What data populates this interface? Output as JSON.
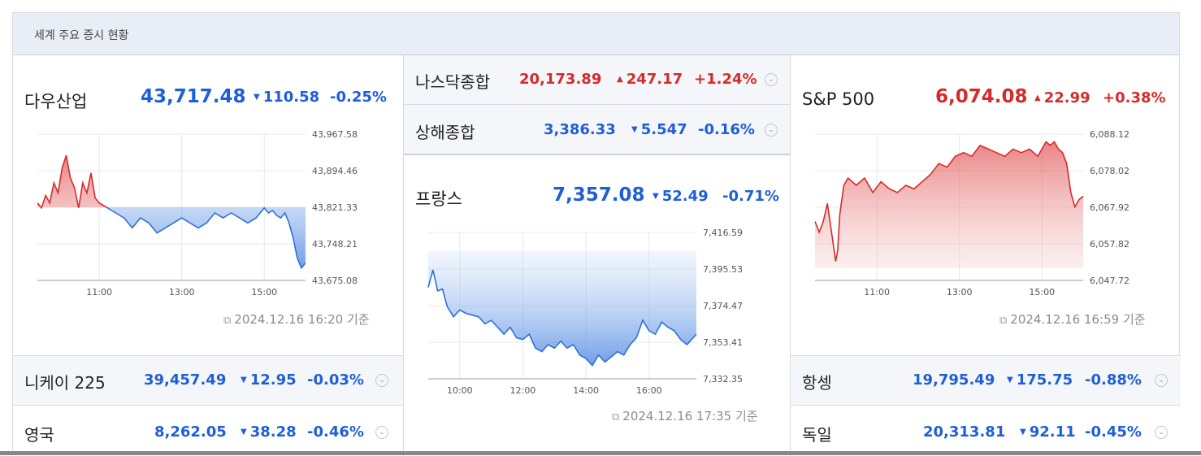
{
  "header": {
    "title": "세계 주요 증시 현황"
  },
  "colors": {
    "up": "#d42b2b",
    "down": "#1f5fd6",
    "header_bg": "#e9edf5"
  },
  "dow": {
    "name": "다우산업",
    "price": "43,717.48",
    "change": "110.58",
    "percent": "-0.25%",
    "direction": "down",
    "timestamp": "2024.12.16 16:20 기준",
    "chart_data": {
      "type": "line",
      "y_ticks": [
        "43,967.58",
        "43,894.46",
        "43,821.33",
        "43,748.21",
        "43,675.08"
      ],
      "x_ticks": [
        "11:00",
        "13:00",
        "15:00"
      ],
      "baseline": 43821.33,
      "ylim": [
        43675.08,
        43967.58
      ],
      "x_range": [
        9.5,
        16.0
      ],
      "x": [
        9.5,
        9.6,
        9.7,
        9.8,
        9.9,
        10.0,
        10.1,
        10.2,
        10.3,
        10.4,
        10.5,
        10.6,
        10.7,
        10.8,
        10.9,
        11.0,
        11.2,
        11.4,
        11.6,
        11.8,
        12.0,
        12.2,
        12.4,
        12.6,
        12.8,
        13.0,
        13.2,
        13.4,
        13.6,
        13.8,
        14.0,
        14.2,
        14.4,
        14.6,
        14.8,
        15.0,
        15.1,
        15.2,
        15.3,
        15.4,
        15.5,
        15.6,
        15.7,
        15.8,
        15.9,
        16.0
      ],
      "y": [
        43830,
        43820,
        43845,
        43830,
        43870,
        43850,
        43900,
        43925,
        43880,
        43860,
        43820,
        43870,
        43850,
        43890,
        43840,
        43830,
        43820,
        43810,
        43800,
        43780,
        43800,
        43790,
        43770,
        43780,
        43790,
        43800,
        43790,
        43780,
        43790,
        43810,
        43800,
        43810,
        43800,
        43790,
        43800,
        43820,
        43810,
        43815,
        43805,
        43800,
        43810,
        43790,
        43760,
        43720,
        43700,
        43710
      ]
    }
  },
  "nasdaq": {
    "name": "나스닥종합",
    "price": "20,173.89",
    "change": "247.17",
    "percent": "+1.24%",
    "direction": "up",
    "chevron": "chevron-down-icon"
  },
  "shanghai": {
    "name": "상해종합",
    "price": "3,386.33",
    "change": "5.547",
    "percent": "-0.16%",
    "direction": "down",
    "chevron": "chevron-down-icon"
  },
  "france": {
    "name": "프랑스",
    "price": "7,357.08",
    "change": "52.49",
    "percent": "-0.71%",
    "direction": "down",
    "timestamp": "2024.12.16 17:35 기준",
    "chart_data": {
      "type": "area",
      "y_ticks": [
        "7,416.59",
        "7,395.53",
        "7,374.47",
        "7,353.41",
        "7,332.35"
      ],
      "x_ticks": [
        "10:00",
        "12:00",
        "14:00",
        "16:00"
      ],
      "ylim": [
        7332.35,
        7416.59
      ],
      "x_range": [
        9.0,
        17.5
      ],
      "baseline": 7406.0,
      "x": [
        9.0,
        9.15,
        9.3,
        9.45,
        9.6,
        9.8,
        10.0,
        10.2,
        10.4,
        10.6,
        10.8,
        11.0,
        11.2,
        11.4,
        11.6,
        11.8,
        12.0,
        12.2,
        12.4,
        12.6,
        12.8,
        13.0,
        13.2,
        13.4,
        13.6,
        13.8,
        14.0,
        14.2,
        14.4,
        14.6,
        14.8,
        15.0,
        15.2,
        15.4,
        15.6,
        15.8,
        16.0,
        16.2,
        16.4,
        16.6,
        16.8,
        17.0,
        17.2,
        17.4,
        17.5
      ],
      "y": [
        7385,
        7395,
        7383,
        7384,
        7374,
        7368,
        7372,
        7370,
        7369,
        7368,
        7364,
        7366,
        7362,
        7358,
        7362,
        7356,
        7355,
        7358,
        7350,
        7348,
        7352,
        7350,
        7354,
        7350,
        7352,
        7346,
        7344,
        7340,
        7346,
        7342,
        7345,
        7348,
        7346,
        7352,
        7356,
        7366,
        7360,
        7358,
        7365,
        7362,
        7360,
        7355,
        7352,
        7356,
        7358
      ]
    }
  },
  "sp500": {
    "name": "S&P 500",
    "price": "6,074.08",
    "change": "22.99",
    "percent": "+0.38%",
    "direction": "up",
    "timestamp": "2024.12.16 16:59 기준",
    "chart_data": {
      "type": "area",
      "y_ticks": [
        "6,088.12",
        "6,078.02",
        "6,067.92",
        "6,057.82",
        "6,047.72"
      ],
      "x_ticks": [
        "11:00",
        "13:00",
        "15:00"
      ],
      "ylim": [
        6047.72,
        6088.12
      ],
      "x_range": [
        9.5,
        16.0
      ],
      "x": [
        9.5,
        9.6,
        9.7,
        9.8,
        9.9,
        10.0,
        10.05,
        10.1,
        10.2,
        10.3,
        10.5,
        10.7,
        10.9,
        11.1,
        11.3,
        11.5,
        11.7,
        11.9,
        12.1,
        12.3,
        12.5,
        12.7,
        12.9,
        13.1,
        13.3,
        13.5,
        13.7,
        13.9,
        14.1,
        14.3,
        14.5,
        14.7,
        14.9,
        15.1,
        15.2,
        15.3,
        15.4,
        15.5,
        15.6,
        15.7,
        15.8,
        15.9,
        16.0
      ],
      "y": [
        6064,
        6061,
        6064,
        6069,
        6061,
        6053,
        6056,
        6066,
        6074,
        6076,
        6074,
        6076,
        6072,
        6075,
        6073,
        6072,
        6074,
        6073,
        6075,
        6077,
        6080,
        6079,
        6082,
        6083,
        6082,
        6085,
        6084,
        6083,
        6082,
        6084,
        6083,
        6084,
        6082,
        6086,
        6085,
        6086,
        6084,
        6083,
        6080,
        6072,
        6068,
        6070,
        6071
      ]
    }
  },
  "nikkei": {
    "name": "니케이 225",
    "price": "39,457.49",
    "change": "12.95",
    "percent": "-0.03%",
    "direction": "down",
    "chevron": "chevron-down-icon"
  },
  "uk": {
    "name": "영국",
    "price": "8,262.05",
    "change": "38.28",
    "percent": "-0.46%",
    "direction": "down",
    "chevron": "chevron-down-icon"
  },
  "hangseng": {
    "name": "항셍",
    "price": "19,795.49",
    "change": "175.75",
    "percent": "-0.88%",
    "direction": "down",
    "chevron": "chevron-down-icon"
  },
  "germany": {
    "name": "독일",
    "price": "20,313.81",
    "change": "92.11",
    "percent": "-0.45%",
    "direction": "down",
    "chevron": "chevron-down-icon"
  },
  "glyphs": {
    "up": "▲",
    "down": "▼",
    "chevron": "⌄",
    "clock": "🗓"
  }
}
